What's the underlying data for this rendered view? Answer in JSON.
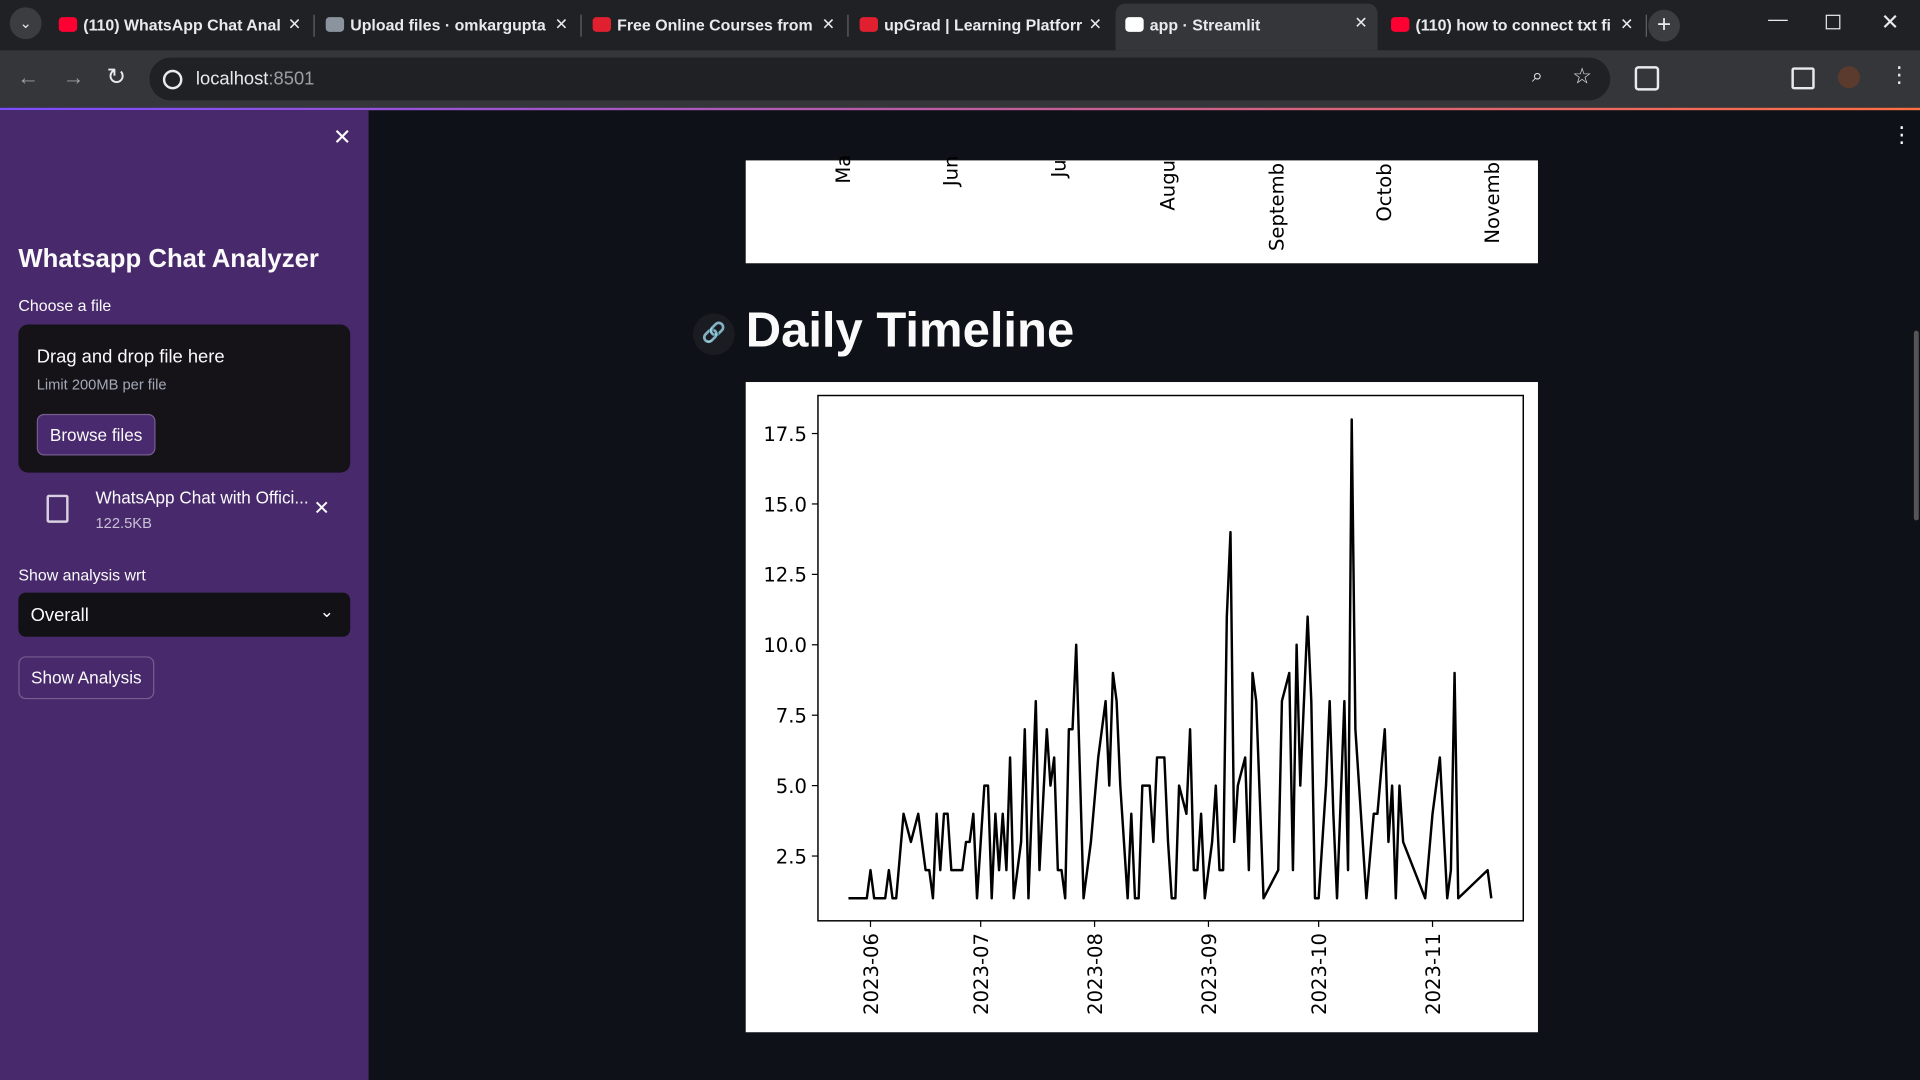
{
  "browser": {
    "tabs": [
      "(110) WhatsApp Chat Anal",
      "Upload files · omkargupta",
      "Free Online Courses from",
      "upGrad | Learning Platforr",
      "app · Streamlit",
      "(110) how to connect txt fi"
    ],
    "url_host": "localhost",
    "url_port": ":8501"
  },
  "sidebar": {
    "title": "Whatsapp Chat Analyzer",
    "file_label": "Choose a file",
    "dropzone_title": "Drag and drop file here",
    "dropzone_limit": "Limit 200MB per file",
    "browse_button": "Browse files",
    "file_name": "WhatsApp Chat with Offici...",
    "file_size": "122.5KB",
    "select_label": "Show analysis wrt",
    "select_value": "Overall",
    "analysis_button": "Show Analysis"
  },
  "main": {
    "top_chart_labels": [
      "Ma",
      "Jun",
      "Ju",
      "Augu",
      "Septemb",
      "Octob",
      "Novemb"
    ],
    "heading": "Daily Timeline"
  },
  "chart_data": {
    "type": "line",
    "color": "#000000",
    "x": [
      19503,
      19508,
      19509,
      19510,
      19513,
      19514,
      19515,
      19516,
      19518,
      19520,
      19522,
      19524,
      19525,
      19526,
      19527,
      19528,
      19529,
      19530,
      19531,
      19534,
      19535,
      19536,
      19537,
      19538,
      19540,
      19541,
      19542,
      19543,
      19544,
      19545,
      19546,
      19547,
      19548,
      19550,
      19551,
      19552,
      19554,
      19555,
      19557,
      19558,
      19559,
      19560,
      19561,
      19562,
      19563,
      19564,
      19565,
      19567,
      19569,
      19571,
      19573,
      19574,
      19575,
      19576,
      19577,
      19579,
      19580,
      19581,
      19582,
      19583,
      19585,
      19586,
      19587,
      19589,
      19590,
      19591,
      19592,
      19593,
      19595,
      19596,
      19597,
      19598,
      19599,
      19600,
      19602,
      19603,
      19604,
      19605,
      19606,
      19607,
      19608,
      19609,
      19611,
      19612,
      19613,
      19614,
      19616,
      19620,
      19621,
      19623,
      19624,
      19625,
      19626,
      19628,
      19629,
      19630,
      19631,
      19633,
      19634,
      19635,
      19636,
      19638,
      19639,
      19640,
      19641,
      19642,
      19643,
      19644,
      19646,
      19647,
      19649,
      19650,
      19651,
      19652,
      19653,
      19654,
      19660,
      19662,
      19664,
      19666,
      19667,
      19668,
      19669,
      19677,
      19678
    ],
    "values": [
      1,
      1,
      2,
      1,
      1,
      2,
      1,
      1,
      4,
      3,
      4,
      2,
      2,
      1,
      4,
      2,
      4,
      4,
      2,
      2,
      3,
      3,
      4,
      1,
      5,
      5,
      1,
      4,
      2,
      4,
      2,
      6,
      1,
      3,
      7,
      1,
      8,
      2,
      7,
      5,
      6,
      2,
      2,
      1,
      7,
      7,
      10,
      1,
      3,
      6,
      8,
      5,
      9,
      8,
      5,
      1,
      4,
      1,
      1,
      5,
      5,
      3,
      6,
      6,
      3,
      1,
      1,
      5,
      4,
      7,
      2,
      2,
      4,
      1,
      3,
      5,
      2,
      2,
      11,
      14,
      3,
      5,
      6,
      2,
      9,
      8,
      1,
      2,
      8,
      9,
      2,
      10,
      5,
      11,
      8,
      1,
      1,
      5,
      8,
      4,
      1,
      8,
      2,
      18,
      7,
      5,
      3,
      1,
      4,
      4,
      7,
      3,
      5,
      1,
      5,
      3,
      1,
      4,
      6,
      1,
      2,
      9,
      1,
      2,
      1
    ],
    "xlim": [
      19494.7,
      19686.7
    ],
    "xticks": [
      {
        "value": 19509,
        "label": "2023-06"
      },
      {
        "value": 19539,
        "label": "2023-07"
      },
      {
        "value": 19570,
        "label": "2023-08"
      },
      {
        "value": 19601,
        "label": "2023-09"
      },
      {
        "value": 19631,
        "label": "2023-10"
      },
      {
        "value": 19662,
        "label": "2023-11"
      }
    ],
    "ylim": [
      0.2,
      18.85
    ],
    "yticks": [
      2.5,
      {
        "value": 5,
        "label": "5.0"
      },
      7.5,
      {
        "value": 10,
        "label": "10.0"
      },
      12.5,
      {
        "value": 15,
        "label": "15.0"
      },
      17.5
    ],
    "grid": false
  }
}
